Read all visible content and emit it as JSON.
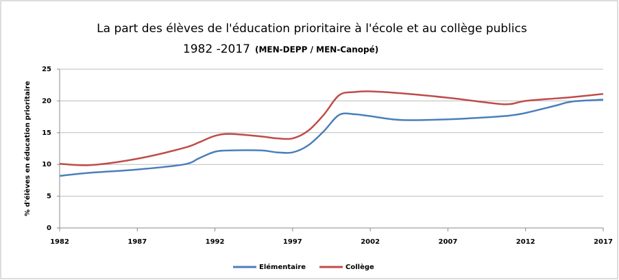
{
  "chart_data": {
    "type": "line",
    "title": "La part des élèves de l'éducation prioritaire à l'école et au collège publics",
    "subtitle": "1982 -2017",
    "source": "(MEN-DEPP / MEN-Canopé)",
    "y_label": "% d'élèves en éducation prioritaire",
    "x": [
      1982,
      1984,
      1987,
      1990,
      1991,
      1992,
      1993,
      1995,
      1996,
      1997,
      1998,
      1999,
      2000,
      2001,
      2002,
      2004,
      2007,
      2010,
      2011,
      2012,
      2014,
      2015,
      2017
    ],
    "series": [
      {
        "name": "Elémentaire",
        "color": "#4a7ebb",
        "values": [
          8.2,
          8.7,
          9.2,
          10.0,
          11.0,
          12.0,
          12.2,
          12.2,
          11.9,
          11.9,
          13.0,
          15.2,
          17.8,
          17.9,
          17.6,
          17.0,
          17.1,
          17.5,
          17.7,
          18.1,
          19.3,
          19.9,
          20.2
        ]
      },
      {
        "name": "Collège",
        "color": "#be4b48",
        "values": [
          10.1,
          9.9,
          10.9,
          12.6,
          13.5,
          14.5,
          14.8,
          14.4,
          14.1,
          14.1,
          15.3,
          17.8,
          20.9,
          21.4,
          21.5,
          21.2,
          20.5,
          19.6,
          19.5,
          20.0,
          20.4,
          20.6,
          21.1
        ]
      }
    ],
    "xlim": [
      1982,
      2017
    ],
    "xticks": [
      1982,
      1987,
      1992,
      1997,
      2002,
      2007,
      2012,
      2017
    ],
    "ylim": [
      0,
      25
    ],
    "yticks": [
      0,
      5,
      10,
      15,
      20,
      25
    ],
    "grid": true,
    "legend": "bottom"
  }
}
